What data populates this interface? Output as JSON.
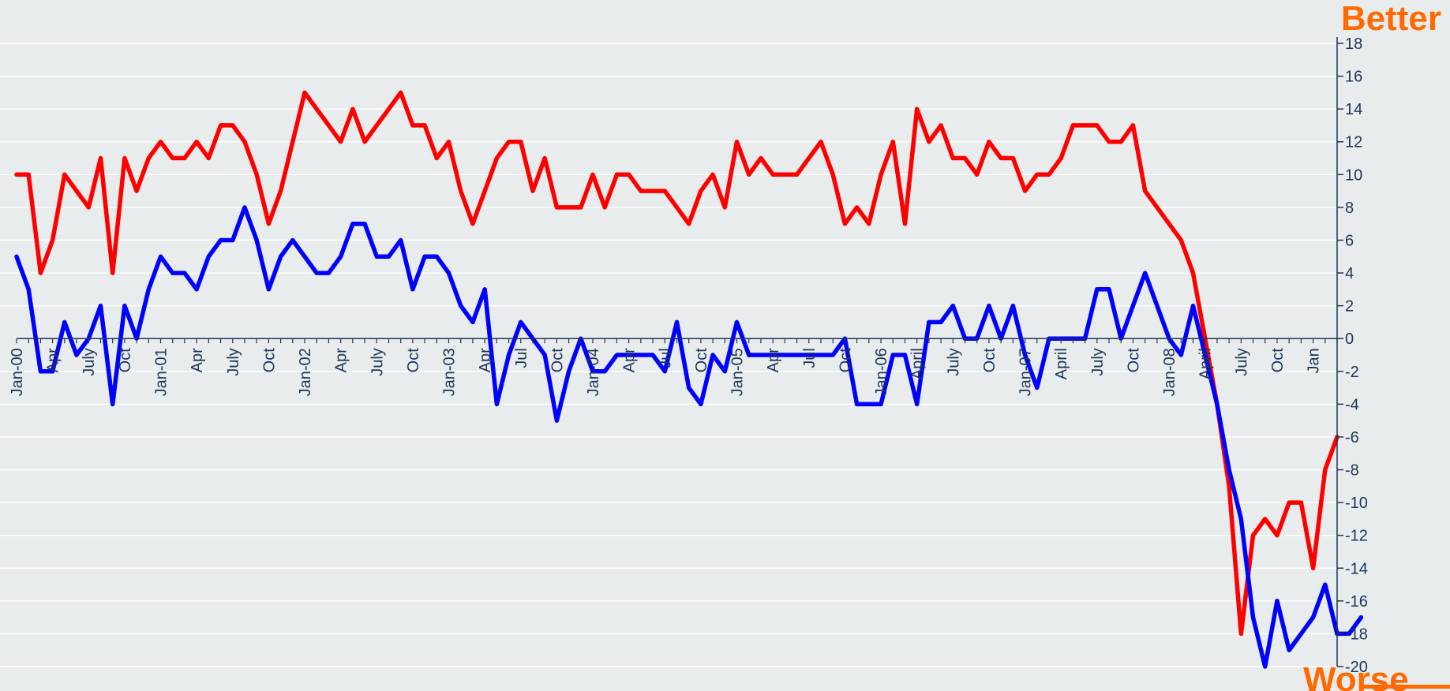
{
  "chart_data": {
    "type": "line",
    "annotations": {
      "top": "Better",
      "bottom": "Worse"
    },
    "ylim": [
      -20,
      18
    ],
    "y_ticks": [
      18,
      16,
      14,
      12,
      10,
      8,
      6,
      4,
      2,
      0,
      -2,
      -4,
      -6,
      -8,
      -10,
      -12,
      -14,
      -16,
      -18,
      -20
    ],
    "x_tick_labels": [
      {
        "i": 0,
        "label": "Jan-00"
      },
      {
        "i": 3,
        "label": "Apr"
      },
      {
        "i": 6,
        "label": "July"
      },
      {
        "i": 9,
        "label": "Oct"
      },
      {
        "i": 12,
        "label": "Jan-01"
      },
      {
        "i": 15,
        "label": "Apr"
      },
      {
        "i": 18,
        "label": "July"
      },
      {
        "i": 21,
        "label": "Oct"
      },
      {
        "i": 24,
        "label": "Jan-02"
      },
      {
        "i": 27,
        "label": "Apr"
      },
      {
        "i": 30,
        "label": "July"
      },
      {
        "i": 33,
        "label": "Oct"
      },
      {
        "i": 36,
        "label": "Jan-03"
      },
      {
        "i": 39,
        "label": "Apr"
      },
      {
        "i": 42,
        "label": "Jul"
      },
      {
        "i": 45,
        "label": "Oct"
      },
      {
        "i": 48,
        "label": "Jan-04"
      },
      {
        "i": 51,
        "label": "Apr"
      },
      {
        "i": 54,
        "label": "Jul"
      },
      {
        "i": 57,
        "label": "Oct"
      },
      {
        "i": 60,
        "label": "Jan-05"
      },
      {
        "i": 63,
        "label": "Apr"
      },
      {
        "i": 66,
        "label": "Jul"
      },
      {
        "i": 69,
        "label": "Oct"
      },
      {
        "i": 72,
        "label": "Jan-06"
      },
      {
        "i": 75,
        "label": "April"
      },
      {
        "i": 78,
        "label": "July"
      },
      {
        "i": 81,
        "label": "Oct"
      },
      {
        "i": 84,
        "label": "Jan-07"
      },
      {
        "i": 87,
        "label": "April"
      },
      {
        "i": 90,
        "label": "July"
      },
      {
        "i": 93,
        "label": "Oct"
      },
      {
        "i": 96,
        "label": "Jan-08"
      },
      {
        "i": 99,
        "label": "April"
      },
      {
        "i": 102,
        "label": "July"
      },
      {
        "i": 105,
        "label": "Oct"
      },
      {
        "i": 108,
        "label": "Jan"
      }
    ],
    "series": [
      {
        "color": "#ff0000",
        "values": [
          10,
          10,
          4,
          6,
          10,
          9,
          8,
          11,
          4,
          11,
          9,
          11,
          12,
          11,
          11,
          12,
          11,
          13,
          13,
          12,
          10,
          7,
          9,
          12,
          15,
          14,
          13,
          12,
          14,
          12,
          13,
          14,
          15,
          13,
          13,
          11,
          12,
          9,
          7,
          9,
          11,
          12,
          12,
          9,
          11,
          8,
          8,
          8,
          10,
          8,
          10,
          10,
          9,
          9,
          9,
          8,
          7,
          9,
          10,
          8,
          12,
          10,
          11,
          10,
          10,
          10,
          11,
          12,
          10,
          7,
          8,
          7,
          10,
          12,
          7,
          14,
          12,
          13,
          11,
          11,
          10,
          12,
          11,
          11,
          9,
          10,
          10,
          11,
          13,
          13,
          13,
          12,
          12,
          13,
          9,
          8,
          7,
          6,
          4,
          0,
          -4,
          -9,
          -18,
          -12,
          -11,
          -12,
          -10,
          -10,
          -14,
          -8,
          -6
        ]
      },
      {
        "color": "#0000ff",
        "values": [
          5,
          3,
          -2,
          -2,
          1,
          -1,
          0,
          2,
          -4,
          2,
          0,
          3,
          5,
          4,
          4,
          3,
          5,
          6,
          6,
          8,
          6,
          3,
          5,
          6,
          5,
          4,
          4,
          5,
          7,
          7,
          5,
          5,
          6,
          3,
          5,
          5,
          4,
          2,
          1,
          3,
          -4,
          -1,
          1,
          0,
          -1,
          -5,
          -2,
          0,
          -2,
          -2,
          -1,
          -1,
          -1,
          -1,
          -2,
          1,
          -3,
          -4,
          -1,
          -2,
          1,
          -1,
          -1,
          -1,
          -1,
          -1,
          -1,
          -1,
          -1,
          0,
          -4,
          -4,
          -4,
          -1,
          -1,
          -4,
          1,
          1,
          2,
          0,
          0,
          2,
          0,
          2,
          -1,
          -3,
          0,
          0,
          0,
          0,
          3,
          3,
          0,
          2,
          4,
          2,
          0,
          -1,
          2,
          -1,
          -4,
          -8,
          -11,
          -17,
          -20,
          -16,
          -19,
          -18,
          -17,
          -15,
          -18,
          -18,
          -17
        ]
      }
    ]
  },
  "colors": {
    "annotation": "#ff6a00",
    "axis": "#1d3557",
    "grid": "#ffffff",
    "background": "#e9ecec"
  }
}
